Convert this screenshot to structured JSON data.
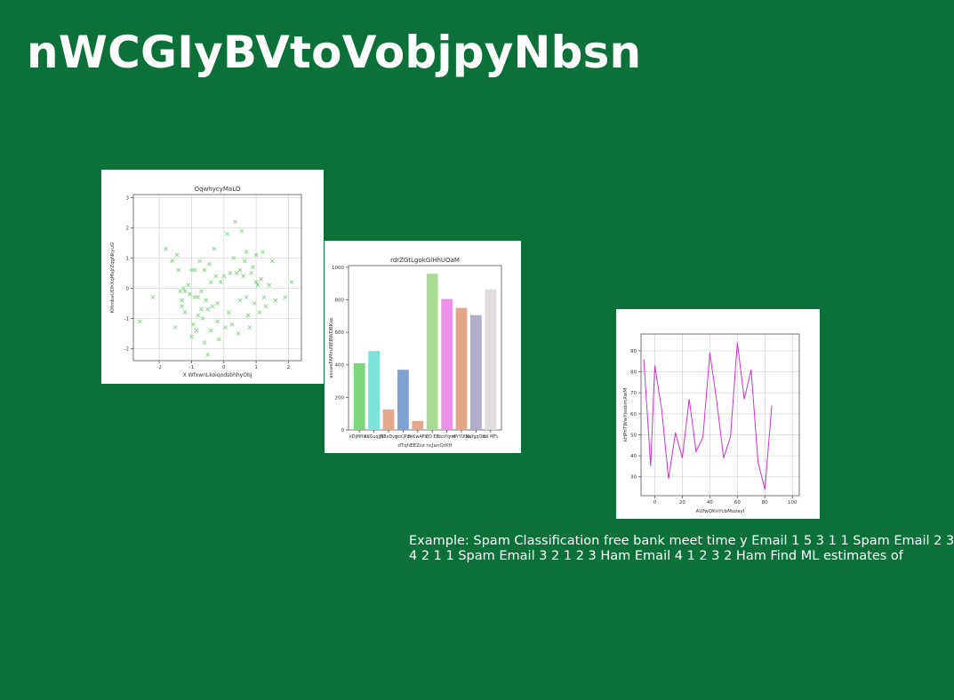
{
  "slide": {
    "title": "nWCGIyBVtoVobjpyNbsn",
    "caption_lines": [
      "Example: Spam Classification free bank meet time y Email 1 5 3 1 1 Spam Email 2 3",
      "4 2 1 1 Spam Email 3 2 1 2 3 Ham Email 4 1 2 3 2 Ham Find ML estimates of"
    ]
  },
  "colors": {
    "background": "#0b7139",
    "title_text": "#ffffff",
    "scatter_marker": "#7ed67e",
    "line": "#cc33cc"
  },
  "chart_data": [
    {
      "type": "scatter",
      "title": "OqwhycyMaLO",
      "xlabel": "X WfxwnLkoiqodsbhhyObj",
      "ylabel": "KHmbeUDhXqMsJrZqgNkyuG",
      "marker": "x",
      "xlim": [
        -2.8,
        2.4
      ],
      "ylim": [
        -2.4,
        3.1
      ],
      "xticks": [
        -2,
        -1,
        0,
        1,
        2
      ],
      "yticks": [
        -2,
        -1,
        0,
        1,
        2,
        3
      ],
      "grid": true,
      "x": [
        -2.6,
        -2.2,
        -1.8,
        -1.6,
        -1.5,
        -1.45,
        -1.4,
        -1.35,
        -1.3,
        -1.3,
        -1.25,
        -1.2,
        -1.2,
        -1.1,
        -1.05,
        -1.0,
        -1.0,
        -0.95,
        -0.9,
        -0.9,
        -0.85,
        -0.8,
        -0.8,
        -0.75,
        -0.7,
        -0.7,
        -0.65,
        -0.6,
        -0.6,
        -0.55,
        -0.5,
        -0.5,
        -0.45,
        -0.4,
        -0.4,
        -0.35,
        -0.3,
        -0.25,
        -0.2,
        -0.2,
        -0.15,
        -0.1,
        0.0,
        0.05,
        0.1,
        0.15,
        0.2,
        0.25,
        0.3,
        0.35,
        0.4,
        0.45,
        0.5,
        0.5,
        0.55,
        0.6,
        0.65,
        0.7,
        0.7,
        0.75,
        0.8,
        0.85,
        0.9,
        0.95,
        1.0,
        1.0,
        1.05,
        1.1,
        1.15,
        1.2,
        1.25,
        1.3,
        1.4,
        1.5,
        1.6,
        1.9,
        2.1
      ],
      "y": [
        -1.1,
        -0.3,
        1.3,
        0.9,
        -1.3,
        1.1,
        0.6,
        -0.1,
        -0.4,
        -0.6,
        0.0,
        -0.1,
        -0.8,
        0.1,
        -0.2,
        0.6,
        -1.6,
        -1.2,
        0.6,
        -0.3,
        -1.4,
        -0.3,
        -0.9,
        0.9,
        -0.1,
        -0.7,
        -1.0,
        0.6,
        -1.8,
        -0.4,
        -2.2,
        -0.7,
        0.8,
        -1.4,
        0.2,
        -0.6,
        1.3,
        0.4,
        -0.5,
        -1.1,
        -1.7,
        0.2,
        0.4,
        -1.3,
        1.8,
        -0.8,
        0.5,
        -1.2,
        1.0,
        2.2,
        0.5,
        -1.5,
        0.6,
        -0.4,
        1.9,
        0.4,
        0.9,
        -0.3,
        1.2,
        -0.9,
        -1.3,
        0.5,
        0.7,
        -0.5,
        0.2,
        1.1,
        0.1,
        -0.8,
        0.3,
        1.2,
        -0.3,
        -0.6,
        0.1,
        0.9,
        -0.4,
        -0.3,
        0.2
      ]
    },
    {
      "type": "bar",
      "title": "rdrZGtLgokGlHhUOaM",
      "xlabel": "dTqhEEZsz ncJanQrKH",
      "ylabel": "asvaeFAMzuNEBWDBKsp",
      "ylim": [
        0,
        1010
      ],
      "yticks": [
        0,
        200,
        400,
        600,
        800,
        1000
      ],
      "grid": false,
      "categories": [
        "kDjMfhkL",
        "KdGuqjfK",
        "jSBxDvg",
        "xcKjPzf",
        "fwKwAPV",
        "QD EB",
        "dctPqmt",
        "xPrYUtxa",
        "NUfgqQdt",
        "Ud MFc"
      ],
      "values": [
        410,
        485,
        125,
        370,
        55,
        960,
        805,
        750,
        705,
        865
      ],
      "colors": [
        "#7cd67c",
        "#7de2dc",
        "#e3a98a",
        "#7ea1d4",
        "#e3a98a",
        "#a8dc94",
        "#ef8fe9",
        "#e3a48a",
        "#b3acc8",
        "#e2dddd"
      ]
    },
    {
      "type": "line",
      "title": "",
      "xlabel": "AUfwQKnYcbMuzayl",
      "ylabel": "kHPnTWwYjsobmXwM",
      "xlim": [
        -10,
        105
      ],
      "ylim": [
        21,
        98
      ],
      "xticks": [
        0,
        20,
        40,
        60,
        80,
        100
      ],
      "yticks": [
        30,
        40,
        50,
        60,
        70,
        80,
        90
      ],
      "grid": true,
      "x": [
        -8,
        -3,
        0,
        5,
        10,
        15,
        20,
        25,
        30,
        35,
        40,
        45,
        50,
        55,
        60,
        65,
        70,
        75,
        80,
        85,
        90,
        95
      ],
      "y": [
        86,
        35,
        83,
        62,
        29,
        51,
        39,
        67,
        42,
        49,
        89,
        66,
        39,
        49,
        94,
        67,
        81,
        37,
        24,
        64,
        null,
        null
      ]
    }
  ]
}
